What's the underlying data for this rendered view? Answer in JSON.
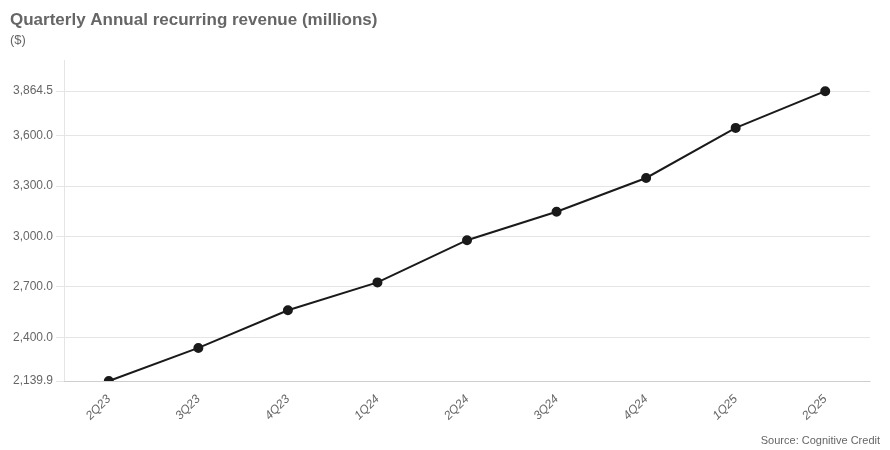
{
  "chart_data": {
    "type": "line",
    "title": "Quarterly Annual recurring revenue (millions)",
    "subtitle": "($)",
    "annotations": [
      "Source: Cognitive Credit"
    ],
    "categories": [
      "2Q23",
      "3Q23",
      "4Q23",
      "1Q24",
      "2Q24",
      "3Q24",
      "4Q24",
      "1Q25",
      "2Q25"
    ],
    "values": [
      2139.9,
      2337.0,
      2561.0,
      2727.0,
      2978.0,
      3147.0,
      3348.0,
      3646.0,
      3864.5
    ],
    "color": "#1a1a1a",
    "marker": "circle",
    "ylim": [
      2139.9,
      4050
    ],
    "yticks": [
      {
        "value": 2139.9,
        "label": "2,139.9"
      },
      {
        "value": 2400.0,
        "label": "2,400.0"
      },
      {
        "value": 2700.0,
        "label": "2,700.0"
      },
      {
        "value": 3000.0,
        "label": "3,000.0"
      },
      {
        "value": 3300.0,
        "label": "3,300.0"
      },
      {
        "value": 3600.0,
        "label": "3,600.0"
      },
      {
        "value": 3864.5,
        "label": "3,864.5"
      }
    ],
    "grid": true
  }
}
